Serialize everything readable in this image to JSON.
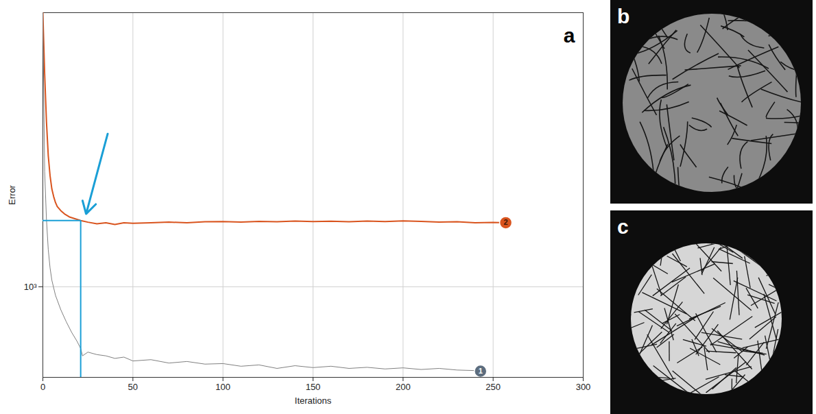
{
  "chart_data": {
    "type": "line",
    "title": "a",
    "x_label": "Iterations",
    "y_label": "Error",
    "log": "y",
    "grid": true,
    "xlim": [
      0,
      300
    ],
    "xticks": [
      0,
      50,
      100,
      150,
      200,
      250,
      300
    ],
    "ylim": [
      580,
      5200
    ],
    "yticks": [
      {
        "value": 1000,
        "label": "10³"
      }
    ],
    "series": [
      {
        "name": "2",
        "color": "#d9541e",
        "marker": "circle",
        "x": [
          0,
          1,
          2,
          3,
          4,
          5,
          6,
          7,
          8,
          10,
          12,
          15,
          18,
          21,
          25,
          30,
          35,
          40,
          45,
          50,
          60,
          70,
          80,
          90,
          100,
          110,
          120,
          130,
          140,
          150,
          160,
          170,
          180,
          190,
          200,
          210,
          220,
          230,
          240,
          250,
          257
        ],
        "values": [
          5200,
          3600,
          2700,
          2200,
          1950,
          1800,
          1720,
          1660,
          1620,
          1580,
          1550,
          1520,
          1505,
          1490,
          1475,
          1460,
          1470,
          1455,
          1470,
          1465,
          1470,
          1475,
          1470,
          1478,
          1480,
          1475,
          1482,
          1478,
          1485,
          1480,
          1483,
          1478,
          1485,
          1480,
          1487,
          1482,
          1475,
          1478,
          1470,
          1472,
          1470
        ]
      },
      {
        "name": "1",
        "color": "#7f7f7f",
        "marker": "circle",
        "x": [
          0,
          1,
          2,
          3,
          4,
          5,
          7,
          10,
          13,
          16,
          19,
          21,
          22,
          25,
          30,
          35,
          40,
          45,
          50,
          60,
          70,
          80,
          90,
          100,
          110,
          120,
          130,
          140,
          150,
          160,
          170,
          180,
          190,
          200,
          210,
          220,
          230,
          240,
          243
        ],
        "values": [
          5200,
          2000,
          1500,
          1250,
          1120,
          1040,
          950,
          870,
          810,
          760,
          720,
          690,
          660,
          675,
          665,
          660,
          650,
          655,
          640,
          645,
          632,
          638,
          628,
          630,
          620,
          625,
          612,
          622,
          615,
          620,
          612,
          616,
          610,
          614,
          608,
          612,
          606,
          604,
          602
        ]
      }
    ],
    "annotations": [
      {
        "type": "guide",
        "x": 21,
        "y": 1490,
        "color": "#1a9fd6"
      },
      {
        "type": "arrow",
        "x1": 36,
        "y1": 2510,
        "x2": 24,
        "y2": 1550,
        "color": "#1a9fd6"
      }
    ]
  },
  "images": [
    {
      "label": "b"
    },
    {
      "label": "c"
    }
  ]
}
